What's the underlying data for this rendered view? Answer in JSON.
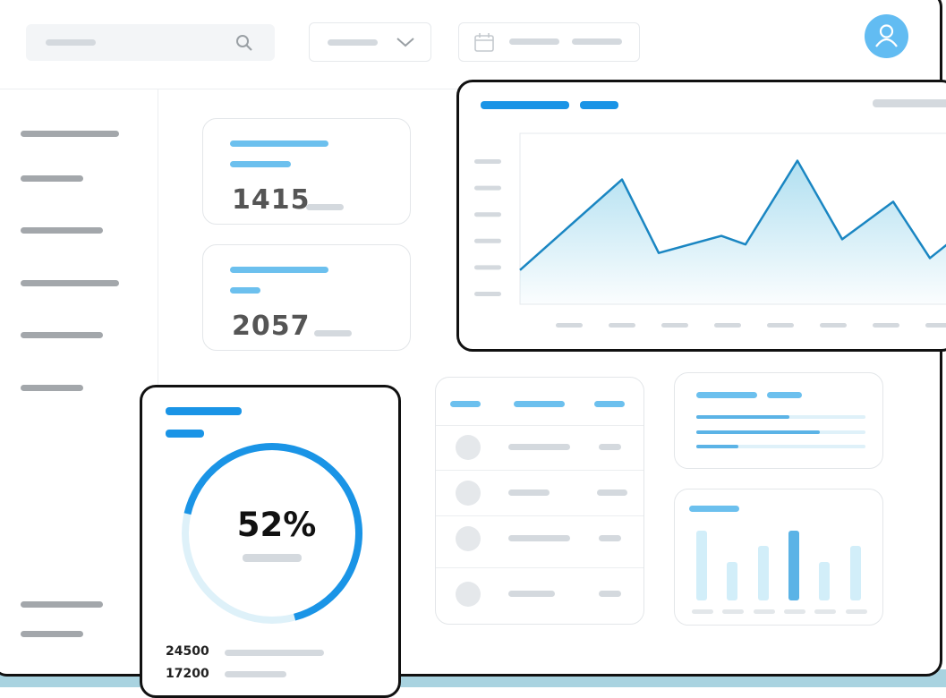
{
  "stats": [
    {
      "value": "1415"
    },
    {
      "value": "2057"
    }
  ],
  "donut": {
    "percent_label": "52%",
    "percent": 52,
    "rows": [
      {
        "value": "24500"
      },
      {
        "value": "17200"
      }
    ]
  },
  "chart_data": {
    "type": "area",
    "title": "",
    "xlabel": "",
    "ylabel": "",
    "values": [
      20,
      73,
      30,
      40,
      35,
      84,
      38,
      60,
      27,
      37
    ],
    "grid": false,
    "color": "#1a86c2",
    "fill": "#a8dcef"
  },
  "progress": [
    55,
    73,
    25
  ],
  "bars": {
    "type": "bar",
    "values": [
      100,
      55,
      78,
      100,
      55,
      78
    ],
    "highlight_index": 3
  },
  "colors": {
    "accent": "#1a94e6",
    "light_accent": "#6cc0ee",
    "avatar": "#62bcf2"
  }
}
